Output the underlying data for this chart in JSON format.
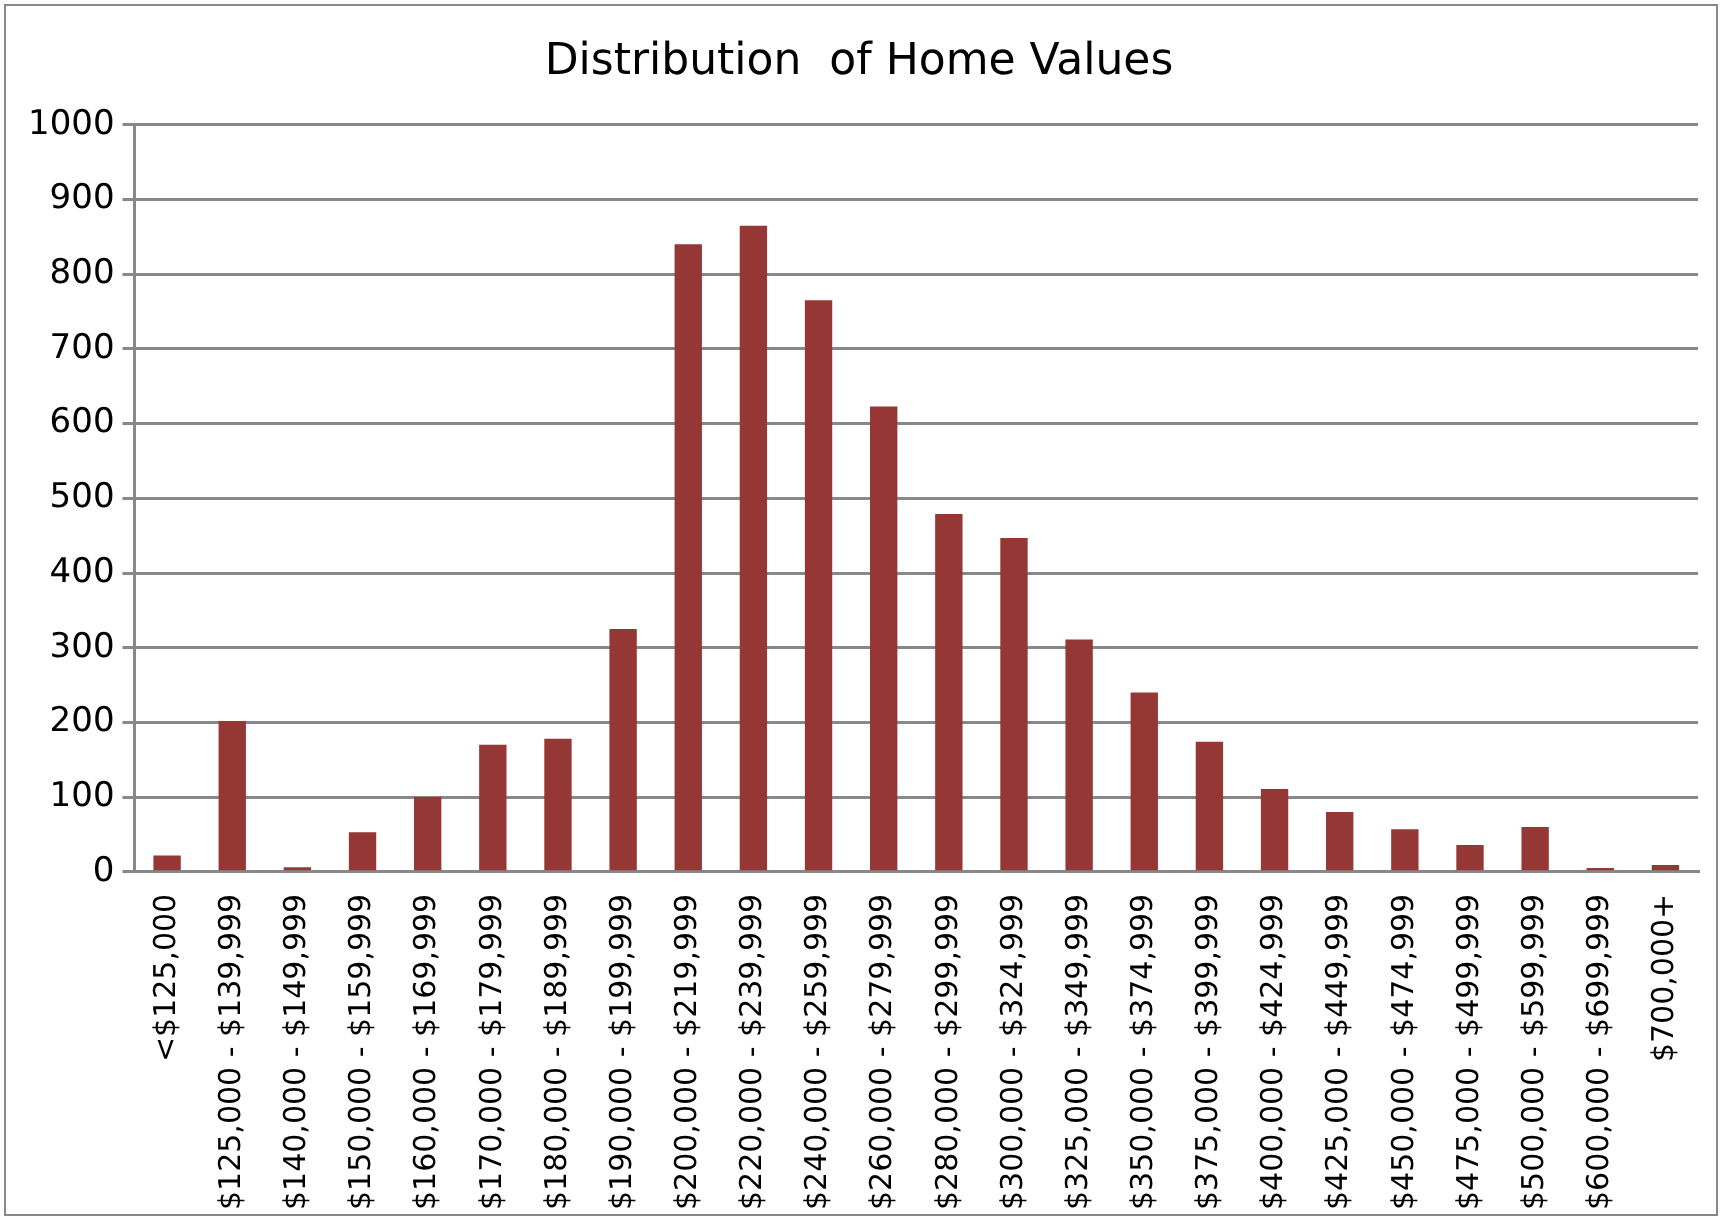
{
  "chart_data": {
    "type": "bar",
    "title": "Distribution  of Home Values",
    "categories": [
      "<$125,000",
      "$125,000 - $139,999",
      "$140,000 - $149,999",
      "$150,000 - $159,999",
      "$160,000 - $169,999",
      "$170,000 - $179,999",
      "$180,000 - $189,999",
      "$190,000 - $199,999",
      "$200,000 - $219,999",
      "$220,000 - $239,999",
      "$240,000 - $259,999",
      "$260,000 - $279,999",
      "$280,000 - $299,999",
      "$300,000 - $324,999",
      "$325,000 - $349,999",
      "$350,000 - $374,999",
      "$375,000 - $399,999",
      "$400,000 - $424,999",
      "$425,000 - $449,999",
      "$450,000 - $474,999",
      "$475,000 - $499,999",
      "$500,000 - $599,999",
      "$600,000 - $699,999",
      "$700,000+"
    ],
    "values": [
      22,
      202,
      6,
      53,
      100,
      170,
      178,
      325,
      840,
      865,
      765,
      623,
      479,
      447,
      311,
      240,
      174,
      111,
      80,
      57,
      36,
      60,
      5,
      9
    ],
    "color": "#953735",
    "ylim": [
      0,
      1000
    ],
    "yticks": [
      0,
      100,
      200,
      300,
      400,
      500,
      600,
      700,
      800,
      900,
      1000
    ],
    "grid": "y",
    "legend": false
  }
}
